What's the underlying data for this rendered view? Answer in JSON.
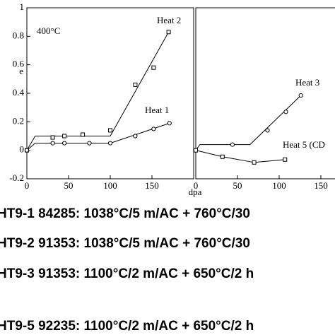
{
  "chart_data": [
    {
      "type": "line",
      "annotation": "400°C",
      "ylabel": "e",
      "xlim": [
        0,
        200
      ],
      "xticks": [
        0,
        50,
        100,
        150
      ],
      "ylim": [
        -0.2,
        1
      ],
      "yticks": [
        -0.2,
        0,
        0.2,
        0.4,
        0.6,
        0.8,
        1
      ],
      "series": [
        {
          "name": "Heat 2",
          "marker": "square",
          "x": [
            0,
            31,
            45,
            67,
            100,
            130,
            152,
            170
          ],
          "values": [
            0,
            0.09,
            0.1,
            0.11,
            0.14,
            0.46,
            0.58,
            0.83
          ],
          "fit_x": [
            0,
            10,
            100,
            170
          ],
          "fit_values": [
            0,
            0.1,
            0.1,
            0.83
          ]
        },
        {
          "name": "Heat 1",
          "marker": "circle",
          "x": [
            0,
            31,
            45,
            75,
            100,
            130,
            152,
            171
          ],
          "values": [
            0,
            0.05,
            0.05,
            0.05,
            0.05,
            0.1,
            0.15,
            0.19
          ],
          "fit_x": [
            0,
            10,
            100,
            171
          ],
          "fit_values": [
            0,
            0.05,
            0.05,
            0.19
          ]
        }
      ]
    },
    {
      "type": "line",
      "xlabel": "dpa",
      "xlim": [
        0,
        200
      ],
      "xticks": [
        0,
        50,
        100,
        150
      ],
      "ylim": [
        -0.2,
        1
      ],
      "series": [
        {
          "name": "Heat 3",
          "marker": "circle",
          "x": [
            0,
            44,
            86,
            108,
            126
          ],
          "values": [
            0,
            0.04,
            0.14,
            0.27,
            0.385
          ],
          "fit_x": [
            0,
            5,
            65,
            126
          ],
          "fit_values": [
            0,
            0.04,
            0.04,
            0.385
          ]
        },
        {
          "name": "Heat 5 (CD",
          "marker": "square",
          "x": [
            0,
            32,
            70,
            107
          ],
          "values": [
            0,
            -0.045,
            -0.085,
            -0.065
          ],
          "fit_x": [
            0,
            32,
            70,
            107
          ],
          "fit_values": [
            0,
            -0.045,
            -0.085,
            -0.065
          ]
        }
      ]
    }
  ],
  "notes": [
    "HT9-1 84285: 1038°C/5 m/AC + 760°C/30",
    "HT9-2 91353: 1038°C/5 m/AC + 760°C/30",
    "HT9-3 91353: 1100°C/2 m/AC + 650°C/2 h",
    "HT9-5 92235: 1100°C/2 m/AC + 650°C/2 h"
  ]
}
